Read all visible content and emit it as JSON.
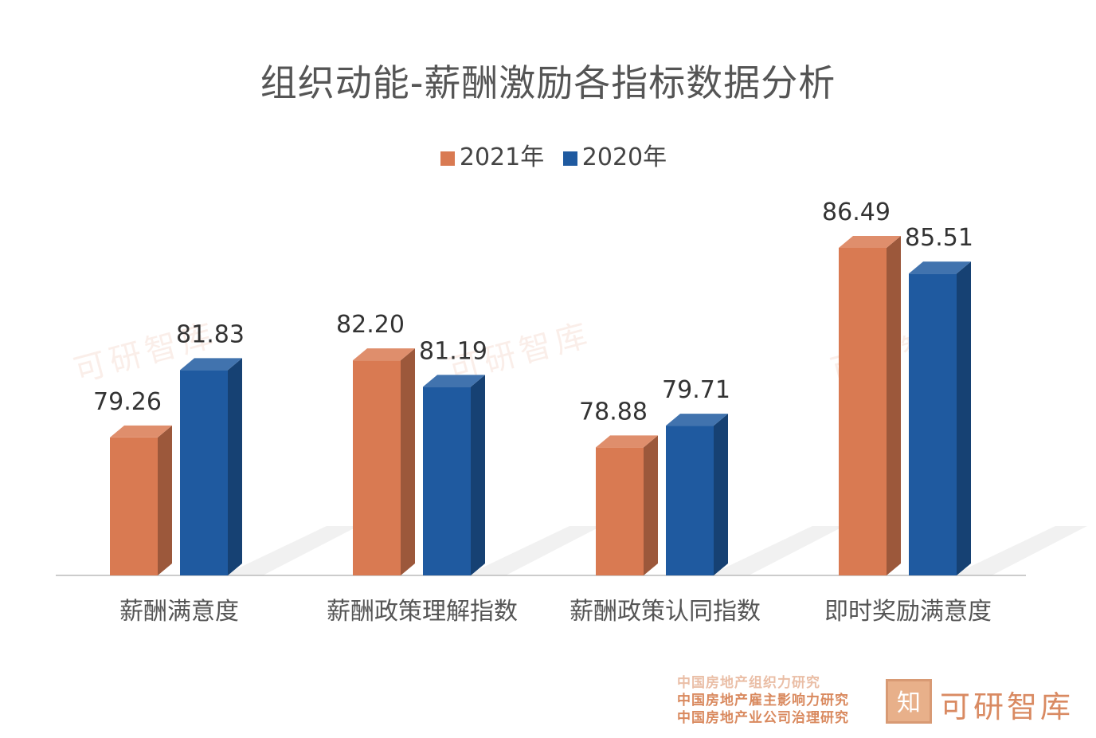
{
  "chart_data": {
    "type": "bar",
    "title": "组织动能-薪酬激励各指标数据分析",
    "categories": [
      "薪酬满意度",
      "薪酬政策理解指数",
      "薪酬政策认同指数",
      "即时奖励满意度"
    ],
    "series": [
      {
        "name": "2021年",
        "values": [
          79.26,
          82.2,
          78.88,
          86.49
        ],
        "color": "#d97a52"
      },
      {
        "name": "2020年",
        "values": [
          81.83,
          81.19,
          79.71,
          85.51
        ],
        "color": "#1f5aa0"
      }
    ],
    "ylim": [
      74,
      88
    ],
    "grid": false,
    "legend_position": "top-center",
    "xlabel": "",
    "ylabel": ""
  },
  "watermark": "可研智库",
  "footer": {
    "lines": [
      "中国房地产组织力研究",
      "中国房地产雇主影响力研究",
      "中国房地产业公司治理研究"
    ],
    "brand_mark": "知",
    "brand_name": "可研智库"
  }
}
